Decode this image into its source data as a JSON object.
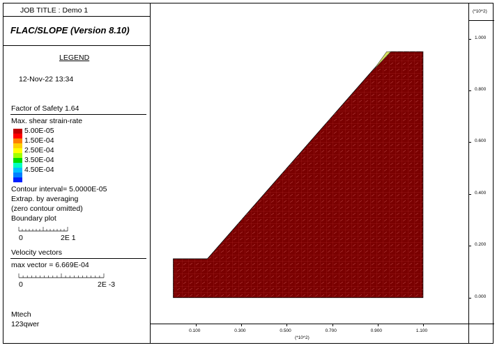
{
  "header": {
    "job_title": "JOB TITLE : Demo 1",
    "program": "FLAC/SLOPE (Version 8.10)",
    "y_scale": "(*10^2)"
  },
  "legend": {
    "title": "LEGEND",
    "date": "12-Nov-22  13:34",
    "factor_of_safety": "Factor of Safety  1.64",
    "contour_title": "Max. shear strain-rate",
    "contour_levels": [
      "5.00E-05",
      "1.50E-04",
      "2.50E-04",
      "3.50E-04",
      "4.50E-04"
    ],
    "contour_colors": [
      "#c00000",
      "#ff0000",
      "#ff8000",
      "#ffd000",
      "#ffff00",
      "#a0ff00",
      "#00e000",
      "#00ffc0",
      "#00c0ff",
      "#0080ff",
      "#0020ff"
    ],
    "contour_interval": "Contour interval= 5.0000E-05",
    "extrap": "Extrap. by averaging",
    "zero_contour": "(zero contour omitted)",
    "boundary_plot": "Boundary plot",
    "boundary_scale_left": "0",
    "boundary_scale_right": "2E  1",
    "velocity_title": "Velocity vectors",
    "max_vector": "max vector =    6.669E-04",
    "vector_scale_left": "0",
    "vector_scale_right": "2E -3",
    "footer_line1": "Mtech",
    "footer_line2": "123qwer"
  },
  "chart_data": {
    "type": "contour",
    "title": "",
    "x_ticks": [
      "0.100",
      "0.300",
      "0.500",
      "0.700",
      "0.900",
      "1.100"
    ],
    "x_tick_values": [
      0.1,
      0.3,
      0.5,
      0.7,
      0.9,
      1.1
    ],
    "y_ticks": [
      "1.000",
      "0.800",
      "0.600",
      "0.400",
      "0.200",
      "0.000"
    ],
    "y_tick_values": [
      1.0,
      0.8,
      0.6,
      0.4,
      0.2,
      0.0
    ],
    "x_scale_label": "(*10^2)",
    "xlim": [
      -0.1,
      1.3
    ],
    "ylim": [
      -0.1,
      1.085
    ],
    "slope_outline": [
      [
        0.0,
        0.0
      ],
      [
        0.0,
        0.15
      ],
      [
        0.15,
        0.15
      ],
      [
        0.95,
        0.95
      ],
      [
        1.1,
        0.95
      ],
      [
        1.1,
        0.0
      ]
    ],
    "fill_color": "#7a0000",
    "factor_of_safety": 1.64
  }
}
